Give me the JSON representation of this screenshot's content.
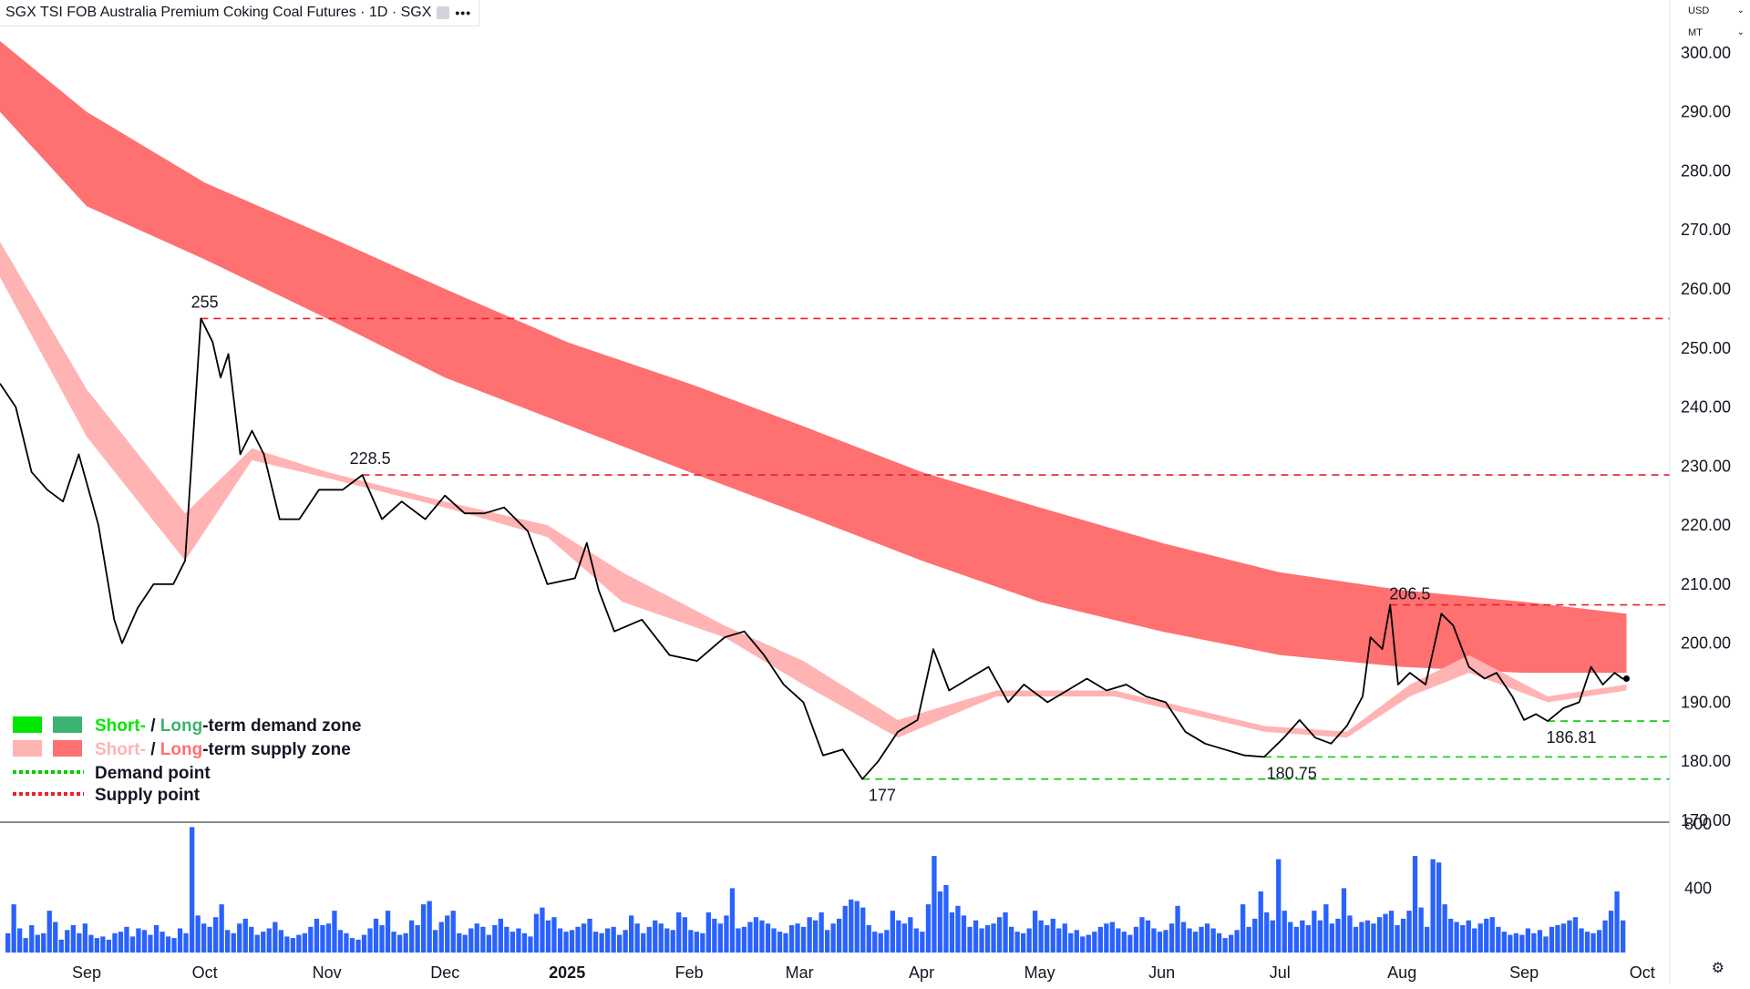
{
  "header": {
    "title": "SGX TSI FOB Australia Premium Coking Coal Futures · 1D · SGX",
    "more_label": "•••"
  },
  "price_axis": {
    "currency": "USD",
    "unit": "MT",
    "ticks": [
      "300.00",
      "290.00",
      "280.00",
      "270.00",
      "260.00",
      "250.00",
      "240.00",
      "230.00",
      "220.00",
      "210.00",
      "200.00",
      "190.00",
      "180.00",
      "170.00"
    ]
  },
  "volume_axis": {
    "ticks": [
      "800",
      "400"
    ]
  },
  "time_axis": {
    "labels": [
      "Sep",
      "Oct",
      "Nov",
      "Dec",
      "2025",
      "Feb",
      "Mar",
      "Apr",
      "May",
      "Jun",
      "Jul",
      "Aug",
      "Sep",
      "Oct"
    ]
  },
  "legend": {
    "demand_zone": {
      "short": "Short-",
      "slash": " / ",
      "long": "Long",
      "suffix": "-term demand zone"
    },
    "supply_zone": {
      "short": "Short-",
      "slash": " / ",
      "long": "Long",
      "suffix": "-term supply zone"
    },
    "demand_point": "Demand point",
    "supply_point": "Supply point"
  },
  "annotations": [
    "255",
    "228.5",
    "177",
    "180.75",
    "206.5",
    "186.81"
  ],
  "colors": {
    "price_line": "#000000",
    "short_demand": "#00e600",
    "long_demand": "#3cb371",
    "short_supply": "#ffb3b3",
    "long_supply": "#ff7070",
    "transition": "#f08200",
    "demand_point": "#00cc00",
    "supply_point": "#e8202a",
    "volume_bar": "#2962ff"
  },
  "chart_data": {
    "type": "line",
    "title": "SGX TSI FOB Australia Premium Coking Coal Futures · 1D · SGX",
    "xlabel": "",
    "ylabel": "",
    "x_range": [
      "2024-08-10",
      "2025-10-08"
    ],
    "ylim": [
      170,
      304
    ],
    "grid": false,
    "legend_position": "bottom-left",
    "price": [
      {
        "x": "2024-08-10",
        "y": 244
      },
      {
        "x": "2024-08-14",
        "y": 240
      },
      {
        "x": "2024-08-18",
        "y": 229
      },
      {
        "x": "2024-08-22",
        "y": 226
      },
      {
        "x": "2024-08-26",
        "y": 224
      },
      {
        "x": "2024-08-30",
        "y": 232
      },
      {
        "x": "2024-09-04",
        "y": 220
      },
      {
        "x": "2024-09-08",
        "y": 204
      },
      {
        "x": "2024-09-10",
        "y": 200
      },
      {
        "x": "2024-09-14",
        "y": 206
      },
      {
        "x": "2024-09-18",
        "y": 210
      },
      {
        "x": "2024-09-23",
        "y": 210
      },
      {
        "x": "2024-09-26",
        "y": 214
      },
      {
        "x": "2024-09-30",
        "y": 255
      },
      {
        "x": "2024-10-03",
        "y": 251
      },
      {
        "x": "2024-10-05",
        "y": 245
      },
      {
        "x": "2024-10-07",
        "y": 249
      },
      {
        "x": "2024-10-10",
        "y": 232
      },
      {
        "x": "2024-10-13",
        "y": 236
      },
      {
        "x": "2024-10-16",
        "y": 232
      },
      {
        "x": "2024-10-20",
        "y": 221
      },
      {
        "x": "2024-10-25",
        "y": 221
      },
      {
        "x": "2024-10-30",
        "y": 226
      },
      {
        "x": "2024-11-05",
        "y": 226
      },
      {
        "x": "2024-11-10",
        "y": 228.5
      },
      {
        "x": "2024-11-15",
        "y": 221
      },
      {
        "x": "2024-11-20",
        "y": 224
      },
      {
        "x": "2024-11-26",
        "y": 221
      },
      {
        "x": "2024-12-01",
        "y": 225
      },
      {
        "x": "2024-12-06",
        "y": 222
      },
      {
        "x": "2024-12-11",
        "y": 222
      },
      {
        "x": "2024-12-16",
        "y": 223
      },
      {
        "x": "2024-12-22",
        "y": 219
      },
      {
        "x": "2024-12-27",
        "y": 210
      },
      {
        "x": "2025-01-03",
        "y": 211
      },
      {
        "x": "2025-01-06",
        "y": 217
      },
      {
        "x": "2025-01-09",
        "y": 209
      },
      {
        "x": "2025-01-13",
        "y": 202
      },
      {
        "x": "2025-01-20",
        "y": 204
      },
      {
        "x": "2025-01-27",
        "y": 198
      },
      {
        "x": "2025-02-03",
        "y": 197
      },
      {
        "x": "2025-02-10",
        "y": 201
      },
      {
        "x": "2025-02-15",
        "y": 202
      },
      {
        "x": "2025-02-20",
        "y": 198
      },
      {
        "x": "2025-02-25",
        "y": 193
      },
      {
        "x": "2025-03-02",
        "y": 190
      },
      {
        "x": "2025-03-07",
        "y": 181
      },
      {
        "x": "2025-03-12",
        "y": 182
      },
      {
        "x": "2025-03-17",
        "y": 177
      },
      {
        "x": "2025-03-21",
        "y": 180
      },
      {
        "x": "2025-03-26",
        "y": 185
      },
      {
        "x": "2025-03-31",
        "y": 187
      },
      {
        "x": "2025-04-04",
        "y": 199
      },
      {
        "x": "2025-04-08",
        "y": 192
      },
      {
        "x": "2025-04-13",
        "y": 194
      },
      {
        "x": "2025-04-18",
        "y": 196
      },
      {
        "x": "2025-04-23",
        "y": 190
      },
      {
        "x": "2025-04-27",
        "y": 193
      },
      {
        "x": "2025-05-03",
        "y": 190
      },
      {
        "x": "2025-05-08",
        "y": 192
      },
      {
        "x": "2025-05-13",
        "y": 194
      },
      {
        "x": "2025-05-18",
        "y": 192
      },
      {
        "x": "2025-05-23",
        "y": 193
      },
      {
        "x": "2025-05-28",
        "y": 191
      },
      {
        "x": "2025-06-02",
        "y": 190
      },
      {
        "x": "2025-06-07",
        "y": 185
      },
      {
        "x": "2025-06-12",
        "y": 183
      },
      {
        "x": "2025-06-17",
        "y": 182
      },
      {
        "x": "2025-06-22",
        "y": 181
      },
      {
        "x": "2025-06-27",
        "y": 180.75
      },
      {
        "x": "2025-07-02",
        "y": 184
      },
      {
        "x": "2025-07-06",
        "y": 187
      },
      {
        "x": "2025-07-10",
        "y": 184
      },
      {
        "x": "2025-07-14",
        "y": 183
      },
      {
        "x": "2025-07-18",
        "y": 186
      },
      {
        "x": "2025-07-22",
        "y": 191
      },
      {
        "x": "2025-07-24",
        "y": 201
      },
      {
        "x": "2025-07-27",
        "y": 199
      },
      {
        "x": "2025-07-29",
        "y": 206.5
      },
      {
        "x": "2025-07-31",
        "y": 193
      },
      {
        "x": "2025-08-03",
        "y": 195
      },
      {
        "x": "2025-08-07",
        "y": 193
      },
      {
        "x": "2025-08-11",
        "y": 205
      },
      {
        "x": "2025-08-14",
        "y": 203
      },
      {
        "x": "2025-08-18",
        "y": 196
      },
      {
        "x": "2025-08-22",
        "y": 194
      },
      {
        "x": "2025-08-25",
        "y": 195
      },
      {
        "x": "2025-08-29",
        "y": 191
      },
      {
        "x": "2025-09-01",
        "y": 187
      },
      {
        "x": "2025-09-04",
        "y": 188
      },
      {
        "x": "2025-09-07",
        "y": 186.81
      },
      {
        "x": "2025-09-11",
        "y": 189
      },
      {
        "x": "2025-09-15",
        "y": 190
      },
      {
        "x": "2025-09-18",
        "y": 196
      },
      {
        "x": "2025-09-21",
        "y": 193
      },
      {
        "x": "2025-09-24",
        "y": 195
      },
      {
        "x": "2025-09-26",
        "y": 194
      },
      {
        "x": "2025-09-27",
        "y": 194
      }
    ],
    "long_term_zone": [
      {
        "x": "2024-08-10",
        "upper": 302,
        "lower": 290
      },
      {
        "x": "2024-09-01",
        "upper": 290,
        "lower": 274
      },
      {
        "x": "2024-10-01",
        "upper": 278,
        "lower": 265
      },
      {
        "x": "2024-11-01",
        "upper": 269,
        "lower": 255
      },
      {
        "x": "2024-12-01",
        "upper": 260,
        "lower": 245
      },
      {
        "x": "2025-01-01",
        "upper": 251,
        "lower": 237
      },
      {
        "x": "2025-02-01",
        "upper": 244,
        "lower": 229
      },
      {
        "x": "2025-03-01",
        "upper": 237,
        "lower": 222
      },
      {
        "x": "2025-04-01",
        "upper": 229,
        "lower": 214
      },
      {
        "x": "2025-05-01",
        "upper": 223,
        "lower": 207
      },
      {
        "x": "2025-06-01",
        "upper": 217,
        "lower": 202
      },
      {
        "x": "2025-07-01",
        "upper": 212,
        "lower": 198
      },
      {
        "x": "2025-08-01",
        "upper": 209,
        "lower": 196
      },
      {
        "x": "2025-09-01",
        "upper": 207,
        "lower": 195
      },
      {
        "x": "2025-09-27",
        "upper": 205,
        "lower": 195
      }
    ],
    "short_term_zone": [
      {
        "x": "2024-08-10",
        "upper": 268,
        "lower": 262
      },
      {
        "x": "2024-09-01",
        "upper": 243,
        "lower": 235
      },
      {
        "x": "2024-09-26",
        "upper": 222,
        "lower": 214
      },
      {
        "x": "2024-10-13",
        "upper": 233,
        "lower": 231
      },
      {
        "x": "2024-11-01",
        "upper": 229,
        "lower": 228
      },
      {
        "x": "2024-12-01",
        "upper": 224,
        "lower": 223
      },
      {
        "x": "2024-12-27",
        "upper": 220,
        "lower": 218
      },
      {
        "x": "2025-01-15",
        "upper": 212,
        "lower": 207
      },
      {
        "x": "2025-02-10",
        "upper": 203,
        "lower": 201
      },
      {
        "x": "2025-03-02",
        "upper": 197,
        "lower": 193
      },
      {
        "x": "2025-03-26",
        "upper": 187,
        "lower": 184
      },
      {
        "x": "2025-04-20",
        "upper": 192,
        "lower": 191
      },
      {
        "x": "2025-05-20",
        "upper": 192,
        "lower": 191
      },
      {
        "x": "2025-06-27",
        "upper": 186,
        "lower": 185
      },
      {
        "x": "2025-07-18",
        "upper": 185,
        "lower": 184
      },
      {
        "x": "2025-08-03",
        "upper": 193,
        "lower": 191
      },
      {
        "x": "2025-08-18",
        "upper": 198,
        "lower": 195
      },
      {
        "x": "2025-09-07",
        "upper": 191,
        "lower": 190
      },
      {
        "x": "2025-09-27",
        "upper": 193,
        "lower": 192
      }
    ],
    "demand_points": [
      186.81,
      180.75,
      177
    ],
    "supply_points": [
      255,
      228.5,
      206.5
    ],
    "volume": [
      120,
      300,
      150,
      90,
      170,
      110,
      120,
      260,
      190,
      80,
      140,
      170,
      120,
      180,
      110,
      90,
      100,
      80,
      120,
      130,
      160,
      100,
      150,
      140,
      110,
      170,
      130,
      100,
      90,
      150,
      120,
      780,
      230,
      180,
      160,
      220,
      300,
      140,
      120,
      180,
      210,
      160,
      110,
      130,
      150,
      190,
      140,
      100,
      90,
      110,
      120,
      160,
      210,
      170,
      180,
      260,
      140,
      120,
      90,
      80,
      110,
      150,
      210,
      170,
      260,
      130,
      110,
      120,
      200,
      170,
      300,
      320,
      140,
      190,
      230,
      260,
      120,
      110,
      150,
      180,
      160,
      110,
      170,
      210,
      160,
      130,
      150,
      120,
      100,
      240,
      280,
      200,
      220,
      150,
      130,
      140,
      160,
      180,
      210,
      130,
      120,
      150,
      160,
      110,
      140,
      230,
      180,
      120,
      160,
      200,
      180,
      150,
      140,
      250,
      220,
      140,
      130,
      120,
      250,
      210,
      180,
      230,
      400,
      150,
      160,
      190,
      220,
      200,
      180,
      150,
      130,
      120,
      170,
      180,
      160,
      220,
      200,
      250,
      140,
      180,
      210,
      290,
      330,
      320,
      280,
      170,
      130,
      120,
      140,
      260,
      200,
      180,
      220,
      150,
      130,
      300,
      600,
      380,
      420,
      250,
      290,
      230,
      160,
      200,
      150,
      170,
      180,
      220,
      250,
      160,
      130,
      120,
      150,
      260,
      200,
      170,
      210,
      150,
      180,
      120,
      140,
      100,
      110,
      130,
      160,
      180,
      190,
      150,
      130,
      110,
      160,
      220,
      200,
      150,
      130,
      140,
      180,
      290,
      190,
      150,
      130,
      160,
      180,
      150,
      120,
      90,
      110,
      140,
      300,
      160,
      210,
      380,
      250,
      200,
      580,
      260,
      190,
      160,
      200,
      170,
      260,
      200,
      300,
      180,
      210,
      400,
      230,
      160,
      190,
      200,
      180,
      220,
      240,
      260,
      170,
      210,
      260,
      600,
      280,
      160,
      580,
      560,
      300,
      210,
      190,
      170,
      200,
      150,
      180,
      210,
      220,
      160,
      130,
      110,
      120,
      110,
      150,
      120,
      140,
      100,
      160,
      170,
      180,
      200,
      220,
      150,
      130,
      120,
      140,
      200,
      260,
      380,
      200
    ]
  }
}
